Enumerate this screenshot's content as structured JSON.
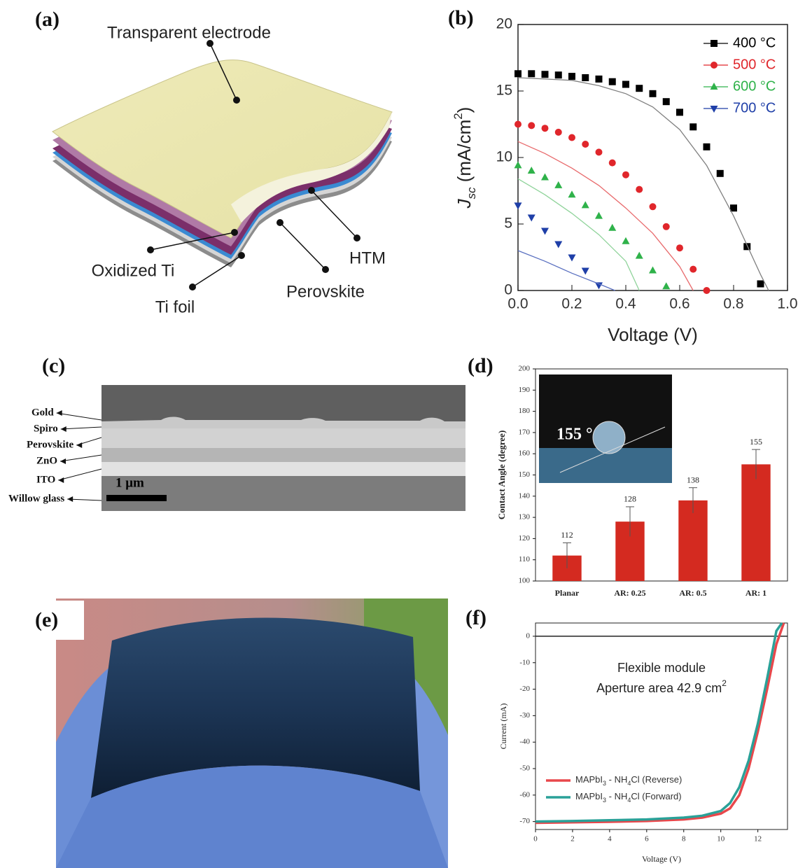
{
  "panel_a": {
    "label": "(a)",
    "layers": [
      "Transparent electrode",
      "HTM",
      "Perovskite",
      "Oxidized Ti",
      "Ti foil"
    ]
  },
  "panel_c": {
    "label": "(c)",
    "layers": [
      "Gold",
      "Spiro",
      "Perovskite",
      "ZnO",
      "ITO",
      "Willow glass"
    ],
    "scale_bar": "1 μm"
  },
  "panel_e": {
    "label": "(e)"
  },
  "chart_data": [
    {
      "type": "line",
      "label": "(b)",
      "x_label": "Voltage (V)",
      "y_label": [
        "J",
        "sc",
        " (mA/cm",
        "2",
        ")"
      ],
      "xlim": [
        0,
        1
      ],
      "xticks": [
        {
          "value": 0,
          "label": "0.0"
        },
        0.2,
        0.4,
        0.6,
        0.8,
        {
          "value": 1,
          "label": "1.0"
        }
      ],
      "ylim": [
        0,
        20
      ],
      "yticks": [
        0,
        5,
        10,
        15,
        20
      ],
      "legend": "upper right",
      "series": [
        {
          "name": "400 °C",
          "color": "#000000",
          "marker": "square",
          "x": [
            0,
            0.05,
            0.1,
            0.15,
            0.2,
            0.25,
            0.3,
            0.35,
            0.4,
            0.45,
            0.5,
            0.55,
            0.6,
            0.65,
            0.7,
            0.75,
            0.8,
            0.85,
            0.9
          ],
          "values": [
            16.3,
            16.3,
            16.25,
            16.2,
            16.1,
            16.0,
            15.9,
            15.7,
            15.5,
            15.2,
            14.8,
            14.2,
            13.4,
            12.3,
            10.8,
            8.8,
            6.2,
            3.3,
            0.5
          ]
        },
        {
          "name": "500 °C",
          "color": "#e0262b",
          "marker": "circle",
          "x": [
            0,
            0.05,
            0.1,
            0.15,
            0.2,
            0.25,
            0.3,
            0.35,
            0.4,
            0.45,
            0.5,
            0.55,
            0.6,
            0.65,
            0.7
          ],
          "values": [
            12.5,
            12.4,
            12.2,
            11.9,
            11.5,
            11.0,
            10.4,
            9.6,
            8.7,
            7.6,
            6.3,
            4.8,
            3.2,
            1.6,
            0
          ]
        },
        {
          "name": "600 °C",
          "color": "#2fb24a",
          "marker": "triangle-up",
          "x": [
            0,
            0.05,
            0.1,
            0.15,
            0.2,
            0.25,
            0.3,
            0.35,
            0.4,
            0.45,
            0.5,
            0.55
          ],
          "values": [
            9.4,
            9.0,
            8.5,
            7.9,
            7.2,
            6.4,
            5.6,
            4.7,
            3.7,
            2.6,
            1.5,
            0.3
          ]
        },
        {
          "name": "700 °C",
          "color": "#1f3fa8",
          "marker": "triangle-down",
          "x": [
            0,
            0.05,
            0.1,
            0.15,
            0.2,
            0.25,
            0.3
          ],
          "values": [
            6.4,
            5.5,
            4.5,
            3.5,
            2.5,
            1.5,
            0.4
          ]
        },
        {
          "color": "#808080",
          "x": [
            0,
            0.1,
            0.2,
            0.3,
            0.4,
            0.5,
            0.6,
            0.7,
            0.8,
            0.9,
            0.93
          ],
          "values": [
            16,
            15.9,
            15.8,
            15.4,
            14.8,
            13.8,
            12.1,
            9.4,
            5.6,
            1.2,
            0
          ]
        },
        {
          "color": "#e86a6c",
          "x": [
            0,
            0.1,
            0.2,
            0.3,
            0.4,
            0.5,
            0.6,
            0.65
          ],
          "values": [
            11.2,
            10.3,
            9.2,
            7.9,
            6.2,
            4.3,
            1.8,
            0
          ]
        },
        {
          "color": "#8fd39a",
          "x": [
            0,
            0.1,
            0.2,
            0.3,
            0.4,
            0.45
          ],
          "values": [
            8.4,
            7.2,
            5.8,
            4.2,
            2.2,
            0
          ]
        },
        {
          "color": "#5a70c0",
          "x": [
            0,
            0.1,
            0.2,
            0.3,
            0.36
          ],
          "values": [
            3.0,
            2.2,
            1.3,
            0.5,
            0
          ]
        }
      ]
    },
    {
      "type": "bar",
      "label": "(d)",
      "y_label": "Contact Angle (degree)",
      "categories": [
        "Planar",
        "AR: 0.25",
        "AR: 0.5",
        "AR: 1"
      ],
      "values": [
        112,
        128,
        138,
        155
      ],
      "errors": [
        6,
        7,
        6,
        7
      ],
      "color": "#d42a20",
      "ylim": [
        100,
        200
      ],
      "yticks": [
        100,
        110,
        120,
        130,
        140,
        150,
        160,
        170,
        180,
        190,
        200
      ],
      "inset_label": "155 °"
    },
    {
      "type": "line",
      "label": "(f)",
      "x_label": "Voltage (V)",
      "y_label": "Current (mA)",
      "annotation": [
        "Flexible module",
        "Aperture area 42.9 cm",
        "2"
      ],
      "xlim": [
        0,
        13.6
      ],
      "xticks": [
        0,
        2,
        4,
        6,
        8,
        10,
        12
      ],
      "ylim": [
        -73,
        5
      ],
      "yticks": [
        0,
        -10,
        -20,
        -30,
        -40,
        -50,
        -60,
        -70
      ],
      "zero_line": true,
      "legend": "lower left",
      "series": [
        {
          "name": "MAPbI3 - NH4Cl (Reverse)",
          "color": "#e8474b",
          "x": [
            0,
            2,
            4,
            6,
            8,
            9,
            10,
            10.5,
            11,
            11.5,
            12,
            12.5,
            13,
            13.4
          ],
          "values": [
            -70.5,
            -70.3,
            -70.1,
            -69.8,
            -69.2,
            -68.5,
            -67,
            -65,
            -60,
            -50,
            -36,
            -20,
            -3,
            5
          ]
        },
        {
          "name": "MAPbI3 - NH4Cl (Forward)",
          "color": "#2aa198",
          "x": [
            0,
            2,
            4,
            6,
            8,
            9,
            10,
            10.5,
            11,
            11.5,
            12,
            12.5,
            13,
            13.3
          ],
          "values": [
            -70,
            -69.8,
            -69.5,
            -69.2,
            -68.5,
            -67.8,
            -66,
            -63,
            -57,
            -47,
            -33,
            -16,
            2,
            5
          ]
        }
      ]
    }
  ]
}
